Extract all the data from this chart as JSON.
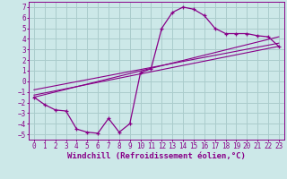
{
  "bg_color": "#cce8e8",
  "grid_color": "#aacccc",
  "line_color": "#880088",
  "xlabel": "Windchill (Refroidissement éolien,°C)",
  "xlim": [
    -0.5,
    23.5
  ],
  "ylim": [
    -5.5,
    7.5
  ],
  "xticks": [
    0,
    1,
    2,
    3,
    4,
    5,
    6,
    7,
    8,
    9,
    10,
    11,
    12,
    13,
    14,
    15,
    16,
    17,
    18,
    19,
    20,
    21,
    22,
    23
  ],
  "yticks": [
    -5,
    -4,
    -3,
    -2,
    -1,
    0,
    1,
    2,
    3,
    4,
    5,
    6,
    7
  ],
  "curve1_x": [
    0,
    1,
    2,
    3,
    4,
    5,
    6,
    7,
    8,
    9,
    10,
    11,
    12,
    13,
    14,
    15,
    16,
    17,
    18,
    19,
    20,
    21,
    22,
    23
  ],
  "curve1_y": [
    -1.5,
    -2.2,
    -2.7,
    -2.8,
    -4.5,
    -4.8,
    -4.9,
    -3.5,
    -4.8,
    -4.0,
    0.8,
    1.2,
    5.0,
    6.5,
    7.0,
    6.8,
    6.2,
    5.0,
    4.5,
    4.5,
    4.5,
    4.3,
    4.2,
    3.3
  ],
  "line1_x": [
    0,
    23
  ],
  "line1_y": [
    -1.5,
    4.2
  ],
  "line2_x": [
    0,
    23
  ],
  "line2_y": [
    -1.3,
    3.3
  ],
  "line3_x": [
    0,
    23
  ],
  "line3_y": [
    -0.8,
    3.6
  ],
  "font_size_label": 6.5,
  "font_size_tick": 5.5
}
